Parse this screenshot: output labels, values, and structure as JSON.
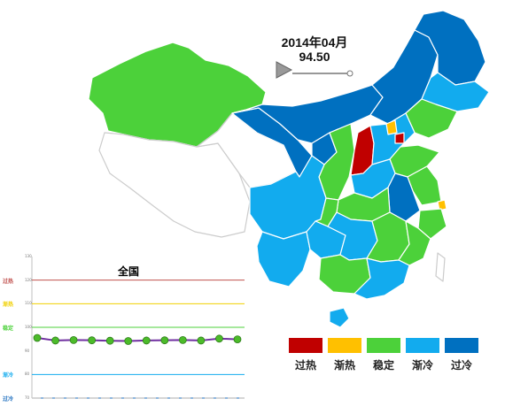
{
  "header": {
    "date": "2014年04月",
    "index_value": "94.50"
  },
  "timeline": {
    "play_icon": "play-triangle-icon"
  },
  "legend": [
    {
      "label": "过热",
      "color": "#c00000"
    },
    {
      "label": "渐热",
      "color": "#ffc000"
    },
    {
      "label": "稳定",
      "color": "#4cd13a"
    },
    {
      "label": "渐冷",
      "color": "#12abee"
    },
    {
      "label": "过冷",
      "color": "#0070c0"
    }
  ],
  "chart": {
    "title": "全国",
    "bands": [
      {
        "label": "过热",
        "value": 120,
        "color": "#c0504d"
      },
      {
        "label": "渐热",
        "value": 110,
        "color": "#f0d000"
      },
      {
        "label": "稳定",
        "value": 100,
        "color": "#4cd13a"
      },
      {
        "label": "渐冷",
        "value": 80,
        "color": "#12abee"
      },
      {
        "label": "过冷",
        "value": 70,
        "color": "#1f6fbf"
      }
    ],
    "y_ticks": [
      "130",
      "120",
      "110",
      "100",
      "90",
      "80",
      "70"
    ],
    "line_color": "#7030a0",
    "point_color": "#4cbb2a"
  },
  "chart_data": {
    "type": "line",
    "title": "全国",
    "ylim": [
      70,
      130
    ],
    "series": [
      {
        "values": [
          95.5,
          94.4,
          94.6,
          94.5,
          94.3,
          94.2,
          94.4,
          94.5,
          94.6,
          94.4,
          95.2,
          94.9
        ]
      }
    ]
  },
  "map": {
    "region_colors": [
      "#4cd13a",
      "#0070c0",
      "#12abee",
      "#c00000",
      "#ffc000"
    ]
  }
}
